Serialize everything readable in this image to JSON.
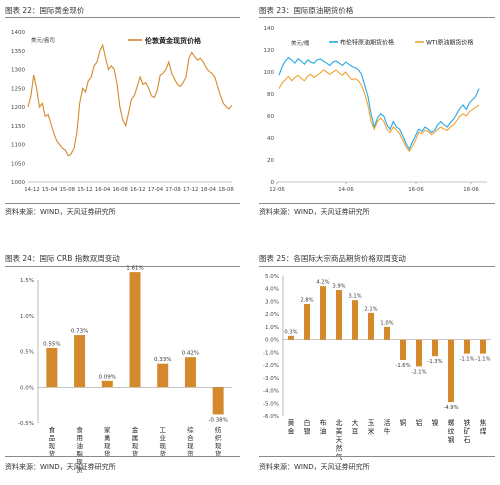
{
  "panels": [
    {
      "title": "图表 22：国际黄金现价",
      "source": "资料来源：WIND，天风证券研究所",
      "chart_data": {
        "type": "line",
        "ylabel": "美元/盎司",
        "ylim": [
          1000,
          1400
        ],
        "yticks": [
          "1400",
          "1350",
          "1300",
          "1250",
          "1200",
          "1150",
          "1100",
          "1050",
          "1000"
        ],
        "xticks": [
          "14-12",
          "15-04",
          "15-08",
          "15-12",
          "16-04",
          "16-08",
          "16-12",
          "17-04",
          "17-08",
          "17-12",
          "18-04",
          "18-08"
        ],
        "series": [
          {
            "name": "伦敦黄金现货价格",
            "values": [
              1200,
              1230,
              1285,
              1250,
              1200,
              1210,
              1175,
              1180,
              1155,
              1130,
              1110,
              1100,
              1090,
              1085,
              1070,
              1075,
              1090,
              1130,
              1210,
              1250,
              1240,
              1270,
              1280,
              1310,
              1320,
              1350,
              1365,
              1330,
              1300,
              1310,
              1300,
              1260,
              1200,
              1165,
              1150,
              1185,
              1220,
              1230,
              1255,
              1280,
              1260,
              1265,
              1250,
              1230,
              1225,
              1245,
              1285,
              1290,
              1300,
              1320,
              1290,
              1275,
              1260,
              1255,
              1265,
              1280,
              1330,
              1345,
              1335,
              1325,
              1330,
              1320,
              1305,
              1295,
              1290,
              1280,
              1255,
              1230,
              1210,
              1200,
              1195,
              1205
            ]
          }
        ]
      }
    },
    {
      "title": "图表 23：国际原油期货价格",
      "source": "资料来源：WIND，天风证券研究所",
      "chart_data": {
        "type": "line",
        "ylabel": "美元/桶",
        "ylim": [
          0,
          140
        ],
        "yticks": [
          "140",
          "120",
          "100",
          "80",
          "60",
          "40",
          "20",
          "0"
        ],
        "xticks": [
          "12-06",
          "14-06",
          "16-06",
          "18-06"
        ],
        "series": [
          {
            "name": "布伦特原油期货价格",
            "color": "#27a9e1",
            "values": [
              97,
              105,
              110,
              113,
              111,
              108,
              112,
              110,
              107,
              111,
              109,
              108,
              111,
              112,
              110,
              108,
              106,
              109,
              110,
              108,
              106,
              109,
              107,
              105,
              104,
              102,
              98,
              88,
              78,
              62,
              50,
              58,
              62,
              60,
              52,
              48,
              55,
              50,
              48,
              42,
              35,
              30,
              36,
              42,
              48,
              46,
              50,
              48,
              45,
              47,
              52,
              55,
              52,
              50,
              54,
              57,
              62,
              67,
              70,
              66,
              72,
              75,
              78,
              85
            ]
          },
          {
            "name": "WTI原油期货价格",
            "color": "#f0a234",
            "values": [
              85,
              90,
              93,
              96,
              92,
              95,
              97,
              94,
              92,
              96,
              98,
              95,
              97,
              99,
              102,
              100,
              98,
              100,
              102,
              99,
              97,
              100,
              96,
              93,
              94,
              92,
              88,
              80,
              70,
              55,
              48,
              55,
              58,
              55,
              48,
              45,
              50,
              47,
              44,
              38,
              32,
              28,
              32,
              38,
              45,
              44,
              47,
              46,
              43,
              45,
              48,
              50,
              48,
              47,
              50,
              52,
              56,
              60,
              62,
              60,
              64,
              66,
              68,
              70
            ]
          }
        ]
      }
    },
    {
      "title": "图表 24：国际 CRB 指数双周变动",
      "source": "资料来源：WIND，天风证券研究所",
      "chart_data": {
        "type": "bar",
        "ylim": [
          -0.5,
          1.5
        ],
        "yticks": [
          "1.5%",
          "1.0%",
          "0.5%",
          "0.0%",
          "-0.5%"
        ],
        "categories": [
          "食品现货",
          "食用油脂现货",
          "家禽现货",
          "金属现货",
          "工业现货",
          "综合现货",
          "纺织现货"
        ],
        "values": [
          0.55,
          0.73,
          0.09,
          1.61,
          0.33,
          0.42,
          -0.38
        ],
        "data_labels": [
          "0.55%",
          "0.73%",
          "0.09%",
          "1.61%",
          "0.33%",
          "0.42%",
          "-0.38%"
        ]
      }
    },
    {
      "title": "图表 25：各国际大宗商品期货价格双周变动",
      "source": "资料来源：WIND，天风证券研究所",
      "chart_data": {
        "type": "bar",
        "ylim": [
          -6,
          5
        ],
        "yticks": [
          "5.0%",
          "4.0%",
          "3.0%",
          "2.0%",
          "1.0%",
          "0.0%",
          "-1.0%",
          "-2.0%",
          "-3.0%",
          "-4.0%",
          "-5.0%",
          "-6.0%"
        ],
        "categories": [
          "黄金",
          "白银",
          "布油",
          "北美天然气",
          "大豆",
          "玉米",
          "活牛",
          "铜",
          "铝",
          "镍",
          "螺纹钢",
          "铁矿石",
          "焦煤"
        ],
        "values": [
          0.3,
          2.8,
          4.2,
          3.9,
          3.1,
          2.1,
          1.0,
          -1.6,
          -2.1,
          -1.3,
          -4.9,
          -1.1,
          -1.1
        ],
        "data_labels": [
          "0.3%",
          "2.8%",
          "4.2%",
          "3.9%",
          "3.1%",
          "2.1%",
          "1.0%",
          "-1.6%",
          "-2.1%",
          "-1.3%",
          "-4.9%",
          "-1.1%",
          "-1.1%"
        ]
      }
    }
  ]
}
